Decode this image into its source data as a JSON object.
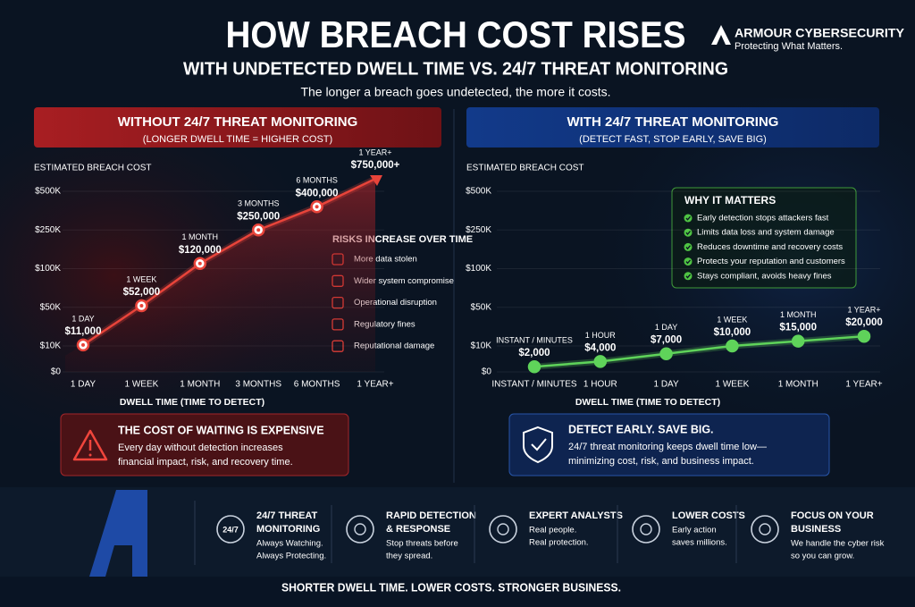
{
  "header": {
    "title": "HOW BREACH COST RISES",
    "subtitle": "WITH UNDETECTED DWELL TIME VS. 24/7 THREAT MONITORING",
    "tagline": "The longer a breach goes undetected, the more it costs.",
    "brand": "ARMOUR CYBERSECURITY",
    "brand_tagline": "Protecting What Matters."
  },
  "panels": [
    {
      "title": "WITHOUT 24/7 THREAT MONITORING",
      "subtitle": "(LONGER DWELL TIME = HIGHER COST)"
    },
    {
      "title": "WITH 24/7 THREAT MONITORING",
      "subtitle": "(DETECT FAST, STOP EARLY, SAVE BIG)"
    }
  ],
  "chart_data": [
    {
      "type": "line",
      "y_label": "ESTIMATED BREACH COST",
      "x_label": "DWELL TIME (TIME TO DETECT)",
      "categories": [
        "1 DAY",
        "1 WEEK",
        "1 MONTH",
        "3 MONTHS",
        "6 MONTHS",
        "1 YEAR+"
      ],
      "values": [
        11000,
        52000,
        120000,
        250000,
        400000,
        750000
      ],
      "value_labels": [
        "$11,000",
        "$52,000",
        "$120,000",
        "$250,000",
        "$400,000",
        "$750,000+"
      ],
      "color": "#e8443a",
      "ylim": [
        0,
        750000
      ],
      "yticks": [
        {
          "value": 0,
          "label": "$0"
        },
        {
          "value": 10000,
          "label": "$10K"
        },
        {
          "value": 50000,
          "label": "$50K"
        },
        {
          "value": 100000,
          "label": "$100K"
        },
        {
          "value": 250000,
          "label": "$250K"
        },
        {
          "value": 500000,
          "label": "$500K"
        }
      ],
      "grid": true
    },
    {
      "type": "line",
      "y_label": "ESTIMATED BREACH COST",
      "x_label": "DWELL TIME (TIME TO DETECT)",
      "categories": [
        "INSTANT / MINUTES",
        "1 HOUR",
        "1 DAY",
        "1 WEEK",
        "1 MONTH",
        "1 YEAR+"
      ],
      "values": [
        2000,
        4000,
        7000,
        10000,
        15000,
        20000
      ],
      "value_labels": [
        "$2,000",
        "$4,000",
        "$7,000",
        "$10,000",
        "$15,000",
        "$20,000"
      ],
      "color": "#5fd35a",
      "ylim": [
        0,
        500000
      ],
      "yticks": [
        {
          "value": 0,
          "label": "$0"
        },
        {
          "value": 10000,
          "label": "$10K"
        },
        {
          "value": 50000,
          "label": "$50K"
        },
        {
          "value": 100000,
          "label": "$100K"
        },
        {
          "value": 250000,
          "label": "$250K"
        },
        {
          "value": 500000,
          "label": "$500K"
        }
      ],
      "grid": true
    }
  ],
  "risks": {
    "title": "RISKS INCREASE OVER TIME",
    "items": [
      "More data stolen",
      "Wider system compromise",
      "Operational disruption",
      "Regulatory fines",
      "Reputational damage"
    ]
  },
  "why_it_matters": {
    "title": "WHY IT MATTERS",
    "items": [
      "Early detection stops attackers fast",
      "Limits data loss and system damage",
      "Reduces downtime and recovery costs",
      "Protects your reputation and customers",
      "Stays compliant, avoids heavy fines"
    ]
  },
  "callouts": [
    {
      "title": "THE COST OF WAITING IS EXPENSIVE",
      "lines": [
        "Every day without detection increases",
        "financial impact, risk, and recovery time."
      ]
    },
    {
      "title": "DETECT EARLY. SAVE BIG.",
      "lines": [
        "24/7 threat monitoring keeps dwell time low—",
        "minimizing cost, risk, and business impact."
      ]
    }
  ],
  "features": [
    {
      "icon_text": "24/7",
      "title": [
        "24/7 THREAT",
        "MONITORING"
      ],
      "description": [
        "Always Watching.",
        "Always Protecting."
      ]
    },
    {
      "title": [
        "RAPID DETECTION",
        "& RESPONSE"
      ],
      "description": [
        "Stop threats before",
        "they spread."
      ]
    },
    {
      "title": [
        "EXPERT ANALYSTS"
      ],
      "description": [
        "Real people.",
        "Real protection."
      ]
    },
    {
      "title": [
        "LOWER COSTS"
      ],
      "description": [
        "Early action",
        "saves millions."
      ]
    },
    {
      "title": [
        "FOCUS ON YOUR",
        "BUSINESS"
      ],
      "description": [
        "We handle the cyber risk",
        "so you can grow."
      ]
    }
  ],
  "footer": "SHORTER DWELL TIME. LOWER COSTS. STRONGER BUSINESS."
}
